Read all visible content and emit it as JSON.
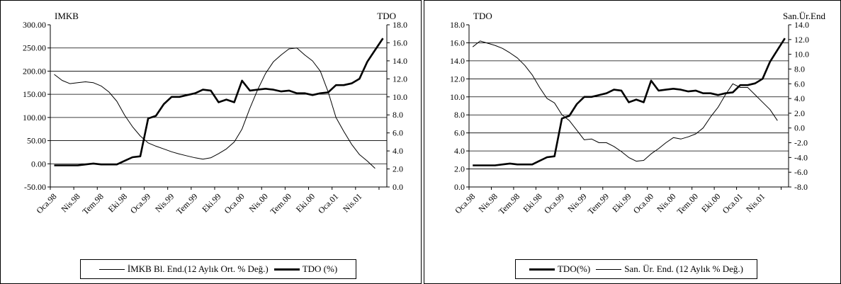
{
  "chart_data": [
    {
      "type": "line",
      "title": "",
      "left_axis_label": "IMKB",
      "right_axis_label": "TDO",
      "x_tick_labels": [
        "Oca.98",
        "Nis.98",
        "Tem.98",
        "Eki.98",
        "Oca.99",
        "Nis.99",
        "Tem.99",
        "Eki.99",
        "Oca.00",
        "Nis.00",
        "Tem.00",
        "Eki.00",
        "Oca.01",
        "Nis.01"
      ],
      "x_tick_indices": [
        0,
        3,
        6,
        9,
        12,
        15,
        18,
        21,
        24,
        27,
        30,
        33,
        36,
        39
      ],
      "left_axis": {
        "ylim": [
          -50,
          300
        ],
        "step": 50,
        "tick_labels": [
          "-50.00",
          "0.00",
          "50.00",
          "100.00",
          "150.00",
          "200.00",
          "250.00",
          "300.00"
        ]
      },
      "right_axis": {
        "ylim": [
          0,
          18
        ],
        "step": 2,
        "tick_labels": [
          "0.0",
          "2.0",
          "4.0",
          "6.0",
          "8.0",
          "10.0",
          "12.0",
          "14.0",
          "16.0",
          "18.0"
        ]
      },
      "grid": "horizontal",
      "legend_position": "bottom",
      "series": [
        {
          "name": "İMKB Bl. End.(12 Aylık Ort. % Değ.)",
          "axis": "left",
          "style": "thin",
          "values": [
            193,
            180,
            173,
            175,
            177,
            175,
            168,
            155,
            135,
            105,
            80,
            60,
            45,
            38,
            32,
            26,
            21,
            17,
            13,
            10,
            13,
            22,
            32,
            47,
            75,
            120,
            160,
            195,
            220,
            235,
            248,
            250,
            235,
            222,
            200,
            155,
            100,
            70,
            42,
            20,
            6,
            -10
          ]
        },
        {
          "name": "TDO (%)",
          "axis": "right",
          "style": "thick",
          "values": [
            2.4,
            2.4,
            2.4,
            2.4,
            2.5,
            2.6,
            2.5,
            2.5,
            2.5,
            2.9,
            3.3,
            3.4,
            7.6,
            7.9,
            9.2,
            10.0,
            10.0,
            10.2,
            10.4,
            10.8,
            10.7,
            9.4,
            9.7,
            9.4,
            11.8,
            10.7,
            10.8,
            10.9,
            10.8,
            10.6,
            10.7,
            10.4,
            10.4,
            10.2,
            10.4,
            10.5,
            11.3,
            11.3,
            11.5,
            12.0,
            13.9,
            15.2,
            16.5
          ]
        }
      ]
    },
    {
      "type": "line",
      "title": "",
      "left_axis_label": "TDO",
      "right_axis_label": "San.Ür.End",
      "x_tick_labels": [
        "Oca.98",
        "Nis.98",
        "Tem.98",
        "Eki.98",
        "Oca.99",
        "Nis.99",
        "Tem.99",
        "Eki.99",
        "Oca.00",
        "Nis.00",
        "Tem.00",
        "Eki.00",
        "Oca.01",
        "Nis.01"
      ],
      "x_tick_indices": [
        0,
        3,
        6,
        9,
        12,
        15,
        18,
        21,
        24,
        27,
        30,
        33,
        36,
        39
      ],
      "left_axis": {
        "ylim": [
          0,
          18
        ],
        "step": 2,
        "tick_labels": [
          "0.0",
          "2.0",
          "4.0",
          "6.0",
          "8.0",
          "10.0",
          "12.0",
          "14.0",
          "16.0",
          "18.0"
        ]
      },
      "right_axis": {
        "ylim": [
          -8,
          14
        ],
        "step": 2,
        "tick_labels": [
          "-8.0",
          "-6.0",
          "-4.0",
          "-2.0",
          "0.0",
          "2.0",
          "4.0",
          "6.0",
          "8.0",
          "10.0",
          "12.0",
          "14.0"
        ]
      },
      "grid": "horizontal",
      "legend_position": "bottom",
      "series": [
        {
          "name": "TDO(%)",
          "axis": "left",
          "style": "thick",
          "values": [
            2.4,
            2.4,
            2.4,
            2.4,
            2.5,
            2.6,
            2.5,
            2.5,
            2.5,
            2.9,
            3.3,
            3.4,
            7.6,
            7.9,
            9.2,
            10.0,
            10.0,
            10.2,
            10.4,
            10.8,
            10.7,
            9.4,
            9.7,
            9.4,
            11.8,
            10.7,
            10.8,
            10.9,
            10.8,
            10.6,
            10.7,
            10.4,
            10.4,
            10.2,
            10.4,
            10.5,
            11.3,
            11.3,
            11.5,
            12.0,
            13.9,
            15.2,
            16.5
          ]
        },
        {
          "name": "San. Ür. End. (12 Aylık % Değ.)",
          "axis": "right",
          "style": "thin",
          "values": [
            11.0,
            11.8,
            11.5,
            11.2,
            10.8,
            10.2,
            9.5,
            8.5,
            7.2,
            5.5,
            4.0,
            3.4,
            1.8,
            1.0,
            -0.3,
            -1.6,
            -1.5,
            -2.0,
            -2.0,
            -2.5,
            -3.2,
            -4.0,
            -4.5,
            -4.4,
            -3.5,
            -2.8,
            -2.0,
            -1.3,
            -1.5,
            -1.2,
            -0.8,
            0.0,
            1.5,
            2.8,
            4.5,
            6.0,
            5.5,
            5.5,
            4.5,
            3.5,
            2.5,
            1.0
          ]
        }
      ]
    }
  ],
  "legends": {
    "left": {
      "series1": "İMKB Bl. End.(12 Aylık Ort. % Değ.)",
      "series2": "TDO (%)"
    },
    "right": {
      "series1": "TDO(%)",
      "series2": "San. Ür. End. (12 Aylık % Değ.)"
    }
  }
}
